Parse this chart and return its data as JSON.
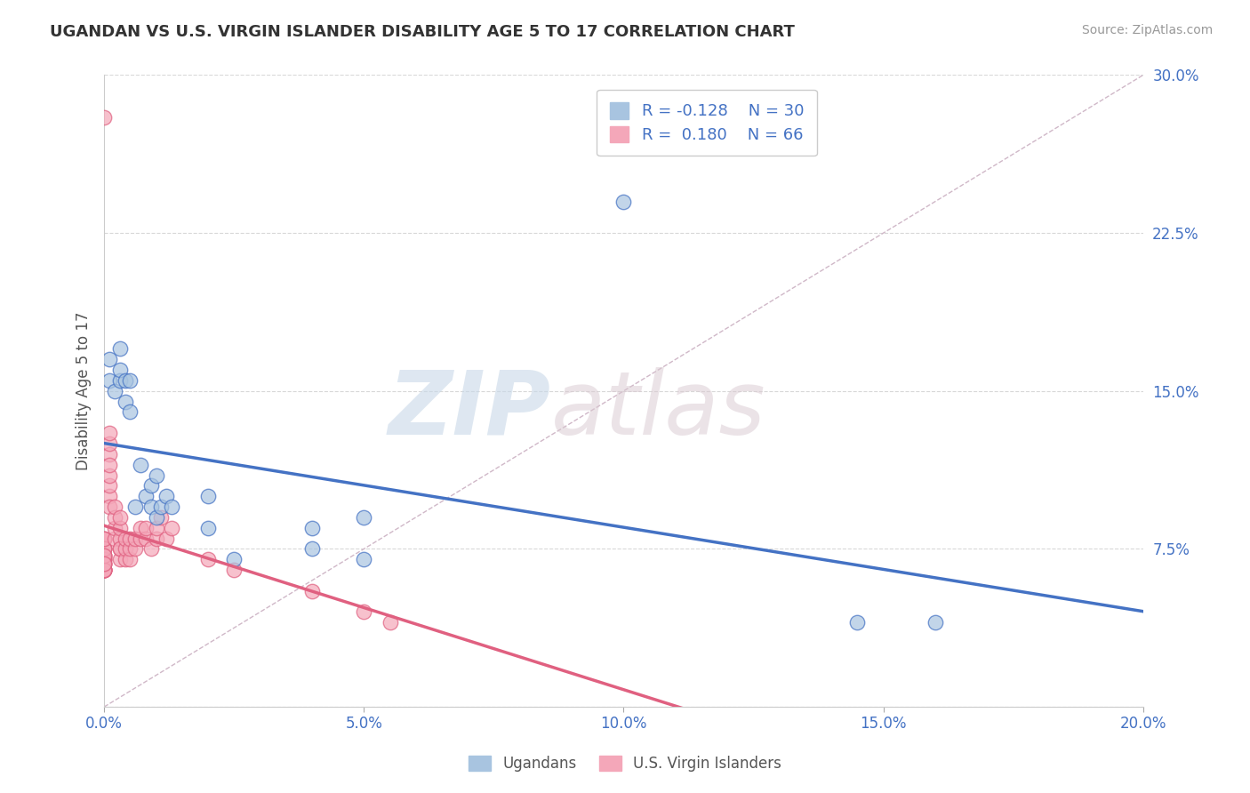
{
  "title": "UGANDAN VS U.S. VIRGIN ISLANDER DISABILITY AGE 5 TO 17 CORRELATION CHART",
  "source_text": "Source: ZipAtlas.com",
  "ylabel": "Disability Age 5 to 17",
  "xlim": [
    0.0,
    0.2
  ],
  "ylim": [
    0.0,
    0.3
  ],
  "xticks": [
    0.0,
    0.05,
    0.1,
    0.15,
    0.2
  ],
  "xticklabels": [
    "0.0%",
    "5.0%",
    "10.0%",
    "15.0%",
    "20.0%"
  ],
  "yticks": [
    0.0,
    0.075,
    0.15,
    0.225,
    0.3
  ],
  "yticklabels": [
    "",
    "7.5%",
    "15.0%",
    "22.5%",
    "30.0%"
  ],
  "legend_R1": "R = -0.128",
  "legend_N1": "N = 30",
  "legend_R2": "R =  0.180",
  "legend_N2": "N = 66",
  "color_ugandan": "#a8c4e0",
  "color_virgin": "#f4a7b9",
  "color_trend_ugandan": "#4472c4",
  "color_trend_virgin": "#e06080",
  "color_diag": "#d0b8c8",
  "watermark_zip": "ZIP",
  "watermark_atlas": "atlas",
  "ugandan_x": [
    0.001,
    0.001,
    0.002,
    0.003,
    0.003,
    0.003,
    0.004,
    0.004,
    0.005,
    0.005,
    0.006,
    0.007,
    0.008,
    0.009,
    0.009,
    0.01,
    0.01,
    0.011,
    0.012,
    0.013,
    0.02,
    0.02,
    0.025,
    0.04,
    0.04,
    0.05,
    0.05,
    0.1,
    0.145,
    0.16
  ],
  "ugandan_y": [
    0.155,
    0.165,
    0.15,
    0.155,
    0.16,
    0.17,
    0.145,
    0.155,
    0.14,
    0.155,
    0.095,
    0.115,
    0.1,
    0.105,
    0.095,
    0.09,
    0.11,
    0.095,
    0.1,
    0.095,
    0.085,
    0.1,
    0.07,
    0.085,
    0.075,
    0.07,
    0.09,
    0.24,
    0.04,
    0.04
  ],
  "virgin_x": [
    0.0,
    0.0,
    0.0,
    0.0,
    0.0,
    0.0,
    0.0,
    0.0,
    0.0,
    0.0,
    0.0,
    0.0,
    0.0,
    0.0,
    0.0,
    0.0,
    0.0,
    0.0,
    0.0,
    0.0,
    0.0,
    0.0,
    0.0,
    0.0,
    0.0,
    0.001,
    0.001,
    0.001,
    0.001,
    0.001,
    0.001,
    0.001,
    0.001,
    0.002,
    0.002,
    0.002,
    0.002,
    0.003,
    0.003,
    0.003,
    0.003,
    0.003,
    0.003,
    0.004,
    0.004,
    0.004,
    0.005,
    0.005,
    0.005,
    0.006,
    0.006,
    0.007,
    0.007,
    0.008,
    0.008,
    0.009,
    0.01,
    0.01,
    0.011,
    0.012,
    0.013,
    0.02,
    0.025,
    0.04,
    0.05,
    0.055
  ],
  "virgin_y": [
    0.28,
    0.065,
    0.07,
    0.065,
    0.068,
    0.072,
    0.068,
    0.065,
    0.07,
    0.075,
    0.065,
    0.072,
    0.08,
    0.075,
    0.065,
    0.072,
    0.08,
    0.07,
    0.065,
    0.068,
    0.075,
    0.065,
    0.072,
    0.08,
    0.068,
    0.1,
    0.105,
    0.11,
    0.12,
    0.125,
    0.13,
    0.115,
    0.095,
    0.08,
    0.085,
    0.09,
    0.095,
    0.07,
    0.075,
    0.08,
    0.085,
    0.09,
    0.075,
    0.07,
    0.075,
    0.08,
    0.07,
    0.075,
    0.08,
    0.075,
    0.08,
    0.08,
    0.085,
    0.08,
    0.085,
    0.075,
    0.08,
    0.085,
    0.09,
    0.08,
    0.085,
    0.07,
    0.065,
    0.055,
    0.045,
    0.04
  ],
  "background_color": "#ffffff",
  "grid_color": "#d8d8d8",
  "tick_color": "#4472c4"
}
